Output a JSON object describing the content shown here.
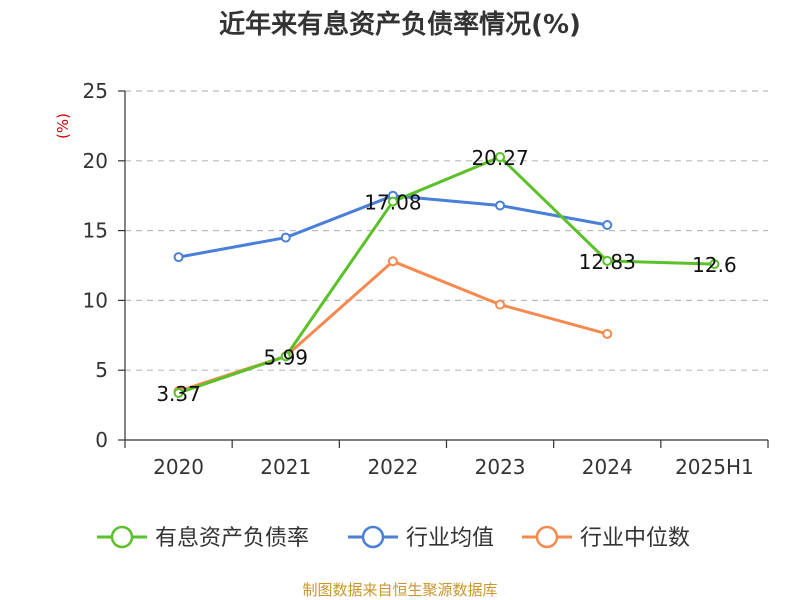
{
  "chart_data": {
    "type": "line",
    "title": "近年来有息资产负债率情况(%)",
    "ylabel": "(%)",
    "xlabel": "",
    "categories": [
      "2020",
      "2021",
      "2022",
      "2023",
      "2024",
      "2025H1"
    ],
    "ylim": [
      0,
      25
    ],
    "yticks": [
      0,
      5,
      10,
      15,
      20,
      25
    ],
    "grid": true,
    "legend_position": "bottom",
    "series": [
      {
        "name": "有息资产负债率",
        "color": "#5ac128",
        "values": [
          3.37,
          5.99,
          17.08,
          20.27,
          12.83,
          12.6
        ],
        "labels": [
          "3.37",
          "5.99",
          "17.08",
          "20.27",
          "12.83",
          "12.6"
        ]
      },
      {
        "name": "行业均值",
        "color": "#4a7fd8",
        "values": [
          13.1,
          14.5,
          17.5,
          16.8,
          15.4,
          null
        ]
      },
      {
        "name": "行业中位数",
        "color": "#f5894f",
        "values": [
          3.5,
          6.0,
          12.8,
          9.7,
          7.6,
          null
        ]
      }
    ],
    "source": "制图数据来自恒生聚源数据库"
  }
}
